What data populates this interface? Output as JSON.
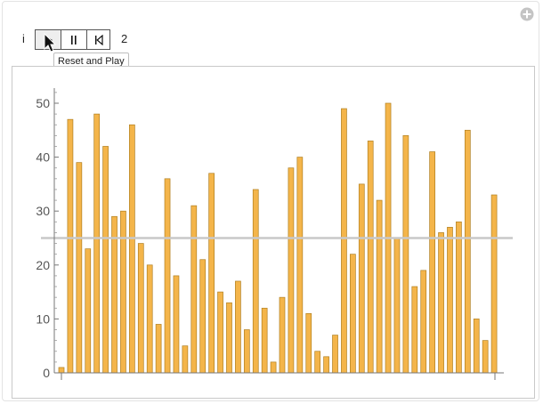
{
  "manipulator": {
    "variable_label": "i",
    "counter_value": "2",
    "tooltip": "Reset and Play",
    "buttons": [
      {
        "name": "play-pause-button",
        "icon": "play-icon"
      },
      {
        "name": "pause-button",
        "icon": "pause-icon"
      },
      {
        "name": "step-back-button",
        "icon": "step-back-icon"
      }
    ],
    "corner_icon": "add-icon"
  },
  "chart_data": {
    "type": "bar",
    "values": [
      1,
      47,
      39,
      23,
      48,
      42,
      29,
      30,
      46,
      24,
      20,
      9,
      36,
      18,
      5,
      31,
      21,
      37,
      15,
      13,
      17,
      8,
      34,
      12,
      2,
      14,
      38,
      40,
      11,
      4,
      3,
      7,
      49,
      22,
      35,
      43,
      32,
      50,
      25,
      44,
      16,
      19,
      41,
      26,
      27,
      28,
      45,
      10,
      6,
      33
    ],
    "reference_line": 25,
    "ylim": [
      0,
      52
    ],
    "yticks": [
      0,
      10,
      20,
      30,
      40,
      50
    ],
    "bar_color": "#f4b54a",
    "bar_edge_color": "#b07f20",
    "reference_line_color": "#c8c8c8",
    "title": "",
    "xlabel": "",
    "ylabel": ""
  }
}
